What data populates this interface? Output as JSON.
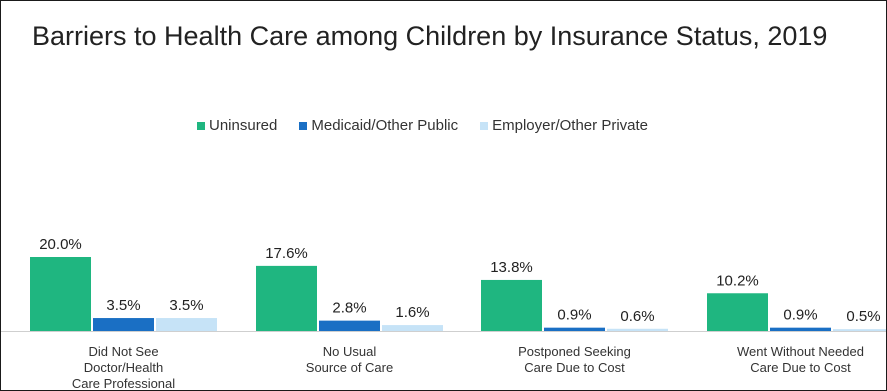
{
  "colors": {
    "uninsured": "#1fb680",
    "medicaid": "#1a6fc4",
    "employer": "#c6e3f7"
  },
  "chart_data": {
    "type": "bar",
    "title": "Barriers to Health Care among Children by Insurance Status, 2019",
    "categories": [
      [
        "Did Not See",
        "Doctor/Health",
        "Care Professional"
      ],
      [
        "No Usual",
        "Source of Care"
      ],
      [
        "Postponed Seeking",
        "Care Due to Cost"
      ],
      [
        "Went Without Needed",
        "Care Due to Cost"
      ]
    ],
    "series": [
      {
        "name": "Uninsured",
        "values": [
          20.0,
          17.6,
          13.8,
          10.2
        ],
        "labels": [
          "20.0%",
          "17.6%",
          "13.8%",
          "10.2%"
        ]
      },
      {
        "name": "Medicaid/Other Public",
        "values": [
          3.5,
          2.8,
          0.9,
          0.9
        ],
        "labels": [
          "3.5%",
          "2.8%",
          "0.9%",
          "0.9%"
        ]
      },
      {
        "name": "Employer/Other Private",
        "values": [
          3.5,
          1.6,
          0.6,
          0.5
        ],
        "labels": [
          "3.5%",
          "1.6%",
          "0.6%",
          "0.5%"
        ]
      }
    ],
    "legend_position": "top",
    "grid": false,
    "ylim": [
      0,
      20
    ]
  }
}
